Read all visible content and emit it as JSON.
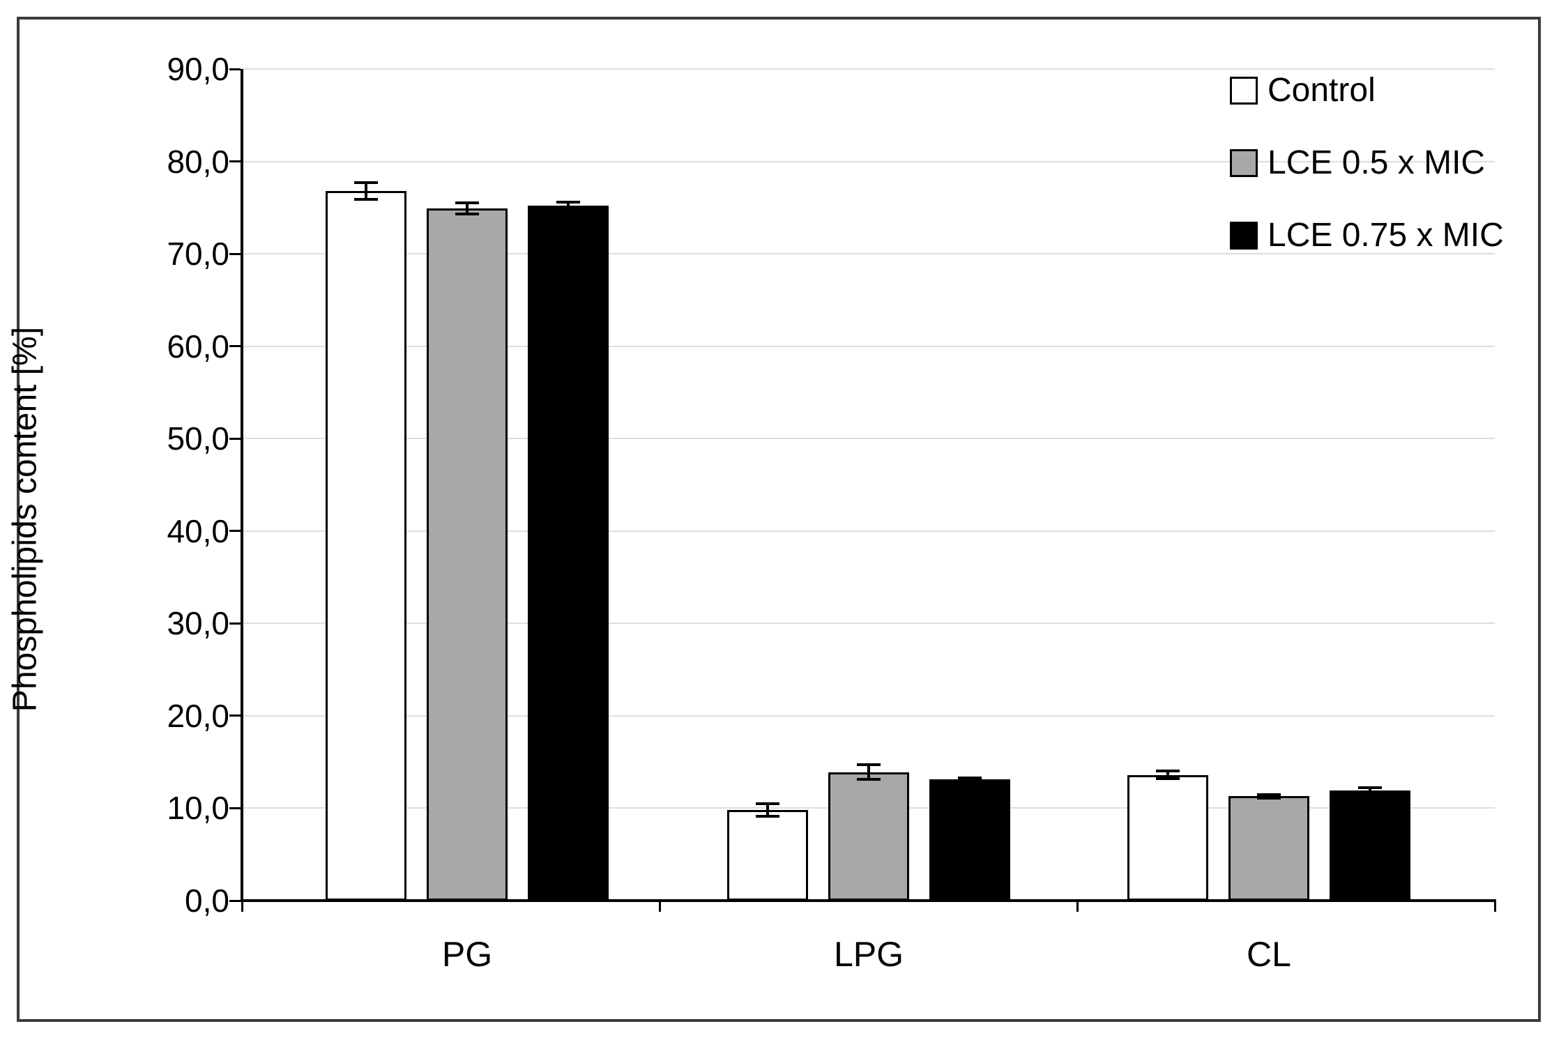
{
  "figure": {
    "background": "#ffffff",
    "border_color": "#3b3b3b"
  },
  "chart_data": {
    "type": "bar",
    "title": "",
    "xlabel": "",
    "ylabel": "Phospholipids content [%]",
    "ylim": [
      0,
      90
    ],
    "ytick_step": 10,
    "ytick_labels": [
      "0,0",
      "10,0",
      "20,0",
      "30,0",
      "40,0",
      "50,0",
      "60,0",
      "70,0",
      "80,0",
      "90,0"
    ],
    "categories": [
      "PG",
      "LPG",
      "CL"
    ],
    "series": [
      {
        "name": "Control",
        "fill": "#ffffff",
        "border": "#000000",
        "values": [
          76.8,
          9.8,
          13.6
        ],
        "errors": [
          0.9,
          0.7,
          0.4
        ]
      },
      {
        "name": "LCE 0.5 x MIC",
        "fill": "#a8a8a8",
        "border": "#000000",
        "values": [
          74.9,
          13.9,
          11.3
        ],
        "errors": [
          0.6,
          0.8,
          0.2
        ]
      },
      {
        "name": "LCE 0.75 x MIC",
        "fill": "#000000",
        "border": "#000000",
        "values": [
          75.2,
          13.1,
          11.9
        ],
        "errors": [
          0.4,
          0.2,
          0.3
        ]
      }
    ],
    "legend_position": "top-right",
    "grid": true,
    "gridline_color": "#dedede",
    "error_bars": true
  }
}
